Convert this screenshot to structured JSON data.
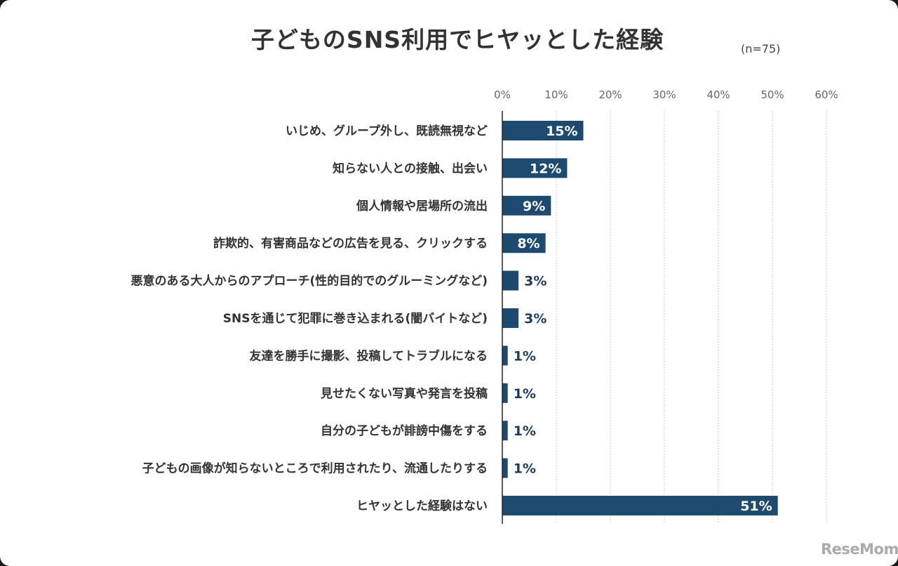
{
  "title": "子どものSNS利用でヒヤッとした経験",
  "note": "(n=75)",
  "logo": "ReseMom",
  "colors": {
    "bar": "#1f4a70",
    "label_inside": "#ffffff",
    "label_outside": "#1f3a5f"
  },
  "chart_data": {
    "type": "bar",
    "orientation": "horizontal",
    "title": "子どものSNS利用でヒヤッとした経験",
    "xlim": [
      0,
      60
    ],
    "xticks": [
      "0%",
      "10%",
      "20%",
      "30%",
      "40%",
      "50%",
      "60%"
    ],
    "grid": true,
    "categories": [
      "いじめ、グループ外し、既読無視など",
      "知らない人との接触、出会い",
      "個人情報や居場所の流出",
      "詐欺的、有害商品などの広告を見る、クリックする",
      "悪意のある大人からのアプローチ(性的目的でのグルーミングなど)",
      "SNSを通じて犯罪に巻き込まれる(闇バイトなど)",
      "友達を勝手に撮影、投稿してトラブルになる",
      "見せたくない写真や発言を投稿",
      "自分の子どもが誹謗中傷をする",
      "子どもの画像が知らないところで利用されたり、流通したりする",
      "ヒヤッとした経験はない"
    ],
    "values": [
      15,
      12,
      9,
      8,
      3,
      3,
      1,
      1,
      1,
      1,
      51
    ],
    "value_labels": [
      "15%",
      "12%",
      "9%",
      "8%",
      "3%",
      "3%",
      "1%",
      "1%",
      "1%",
      "1%",
      "51%"
    ]
  }
}
